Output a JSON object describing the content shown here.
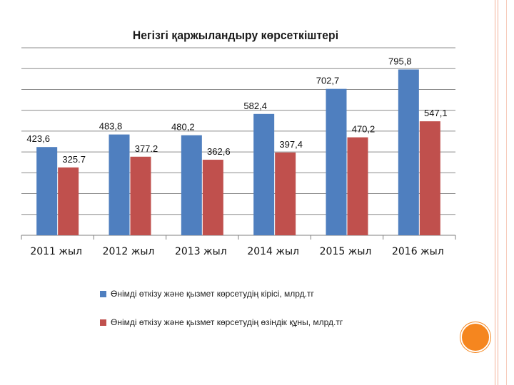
{
  "colors": {
    "revenue": "#4f7fbf",
    "cost": "#c0504d",
    "grid": "#8c8c8c",
    "accent": "#f5861f"
  },
  "chart_data": {
    "type": "bar",
    "title": "Негізгі қаржыландыру көрсеткіштері",
    "categories": [
      "2011 жыл",
      "2012 жыл",
      "2013 жыл",
      "2014 жыл",
      "2015 жыл",
      "2016 жыл"
    ],
    "series": [
      {
        "name": "Өнімді өткізу және қызмет көрсетудің кірісі, млрд.тг",
        "values": [
          423.6,
          483.8,
          480.2,
          582.4,
          702.7,
          795.8
        ],
        "labels": [
          "423,6",
          "483,8",
          "480,2",
          "582,4",
          "702,7",
          "795,8"
        ]
      },
      {
        "name": "Өнімді өткізу және қызмет көрсетудің өзіндік құны, млрд.тг",
        "values": [
          325.7,
          377.2,
          362.6,
          397.4,
          470.2,
          547.1
        ],
        "labels": [
          "325.7",
          "377.2",
          "362,6",
          "397,4",
          "470,2",
          "547,1"
        ]
      }
    ],
    "ylim": [
      0,
      900
    ],
    "grid": true,
    "legend_position": "bottom"
  }
}
